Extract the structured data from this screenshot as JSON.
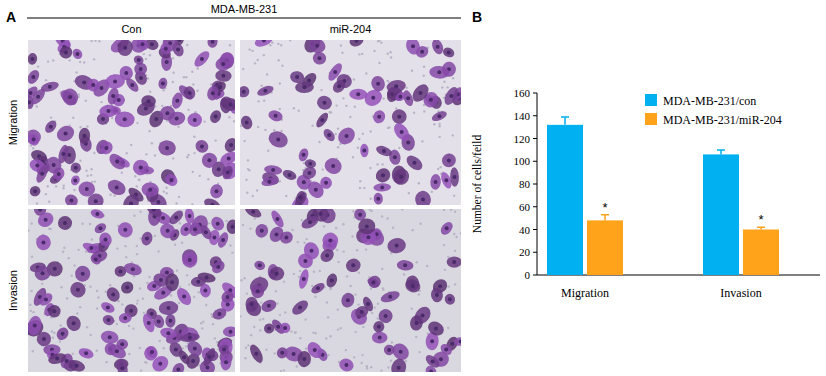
{
  "figure": {
    "panel_a": {
      "label": "A",
      "title": "MDA-MB-231",
      "columns": [
        "Con",
        "miR-204"
      ],
      "rows": [
        "Migration",
        "Invasion"
      ]
    }
  },
  "chart_data": {
    "label": "B",
    "type": "bar",
    "y_label": "Number of cells/feild",
    "categories": [
      "Migration",
      "Invasion"
    ],
    "series": [
      {
        "name": "MDA-MB-231/con",
        "color": "#00b0f0",
        "values": [
          132,
          106
        ],
        "errors": [
          7,
          4
        ]
      },
      {
        "name": "MDA-MB-231/miR-204",
        "color": "#ffa31a",
        "values": [
          48,
          40
        ],
        "errors": [
          5,
          2
        ],
        "significance": [
          "*",
          "*"
        ]
      }
    ],
    "ylim": [
      0,
      160
    ],
    "yticks": [
      0,
      20,
      40,
      60,
      80,
      100,
      120,
      140,
      160
    ],
    "grid": false,
    "legend": "top-right"
  }
}
